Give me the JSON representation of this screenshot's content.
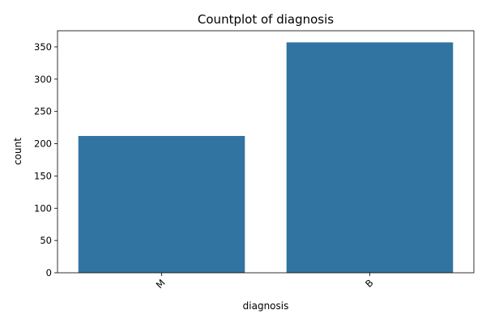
{
  "chart_data": {
    "type": "bar",
    "title": "Countplot of diagnosis",
    "xlabel": "diagnosis",
    "ylabel": "count",
    "categories": [
      "M",
      "B"
    ],
    "values": [
      212,
      357
    ],
    "ylim": [
      0,
      375
    ],
    "yticks": [
      0,
      50,
      100,
      150,
      200,
      250,
      300,
      350
    ],
    "x_tick_rotation": 45,
    "grid": false,
    "legend": "none",
    "bar_color": "#3274a1"
  }
}
